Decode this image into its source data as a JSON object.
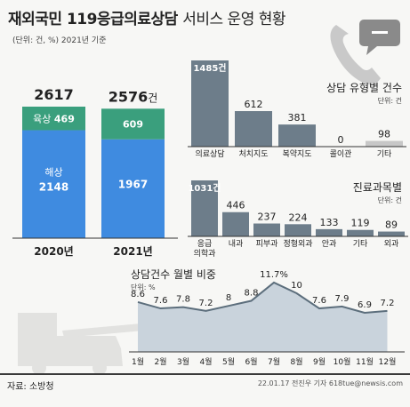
{
  "header": {
    "title_bold": "재외국민 119응급의료상담",
    "title_light": "서비스 운영 현황",
    "unit": "(단위: 건, %) 2021년 기준"
  },
  "colors": {
    "sea": "#3f8be0",
    "land": "#3a9f7d",
    "bar_gray": "#6d7d8a",
    "area_fill": "#c9d3dc",
    "area_line": "#5c6e7c",
    "accent_small": "#c7c7c7"
  },
  "icons": [
    "phone-icon",
    "fire-truck-icon"
  ],
  "chart_data": [
    {
      "type": "bar",
      "subtype": "stacked",
      "categories": [
        "2020년",
        "2021년"
      ],
      "totals": [
        2617,
        2576
      ],
      "total_suffixes": [
        "",
        "건"
      ],
      "series": [
        {
          "name": "육상",
          "values": [
            469,
            609
          ]
        },
        {
          "name": "해상",
          "values": [
            2148,
            1967
          ]
        }
      ]
    },
    {
      "type": "bar",
      "title": "상담 유형별 건수",
      "unit": "단위: 건",
      "categories": [
        "의료상담",
        "처치지도",
        "복약지도",
        "콜이관",
        "기타"
      ],
      "values": [
        1485,
        612,
        381,
        0,
        98
      ],
      "value_labels": [
        "1485건",
        "612",
        "381",
        "0",
        "98"
      ]
    },
    {
      "type": "bar",
      "title": "진료과목별",
      "unit": "단위: 건",
      "categories": [
        "응급의학과",
        "내과",
        "피부과",
        "정형외과",
        "안과",
        "기타",
        "외과"
      ],
      "category_lines": [
        [
          "응급",
          "의학과"
        ],
        [
          "내과"
        ],
        [
          "피부과"
        ],
        [
          "정형외과"
        ],
        [
          "안과"
        ],
        [
          "기타"
        ],
        [
          "외과"
        ]
      ],
      "values": [
        1031,
        446,
        237,
        224,
        133,
        119,
        89
      ],
      "value_labels": [
        "1031건",
        "446",
        "237",
        "224",
        "133",
        "119",
        "89"
      ]
    },
    {
      "type": "area",
      "title": "상담건수 월별 비중",
      "unit": "단위: %",
      "x": [
        "1월",
        "2월",
        "3월",
        "4월",
        "5월",
        "6월",
        "7월",
        "8월",
        "9월",
        "10월",
        "11월",
        "12월"
      ],
      "values": [
        8.6,
        7.6,
        7.8,
        7.2,
        8,
        8.8,
        11.7,
        10,
        7.6,
        7.9,
        6.9,
        7.2
      ],
      "value_labels": [
        "8.6",
        "7.6",
        "7.8",
        "7.2",
        "8",
        "8.8",
        "11.7%",
        "10",
        "7.6",
        "7.9",
        "6.9",
        "7.2"
      ]
    }
  ],
  "footer": {
    "source": "자료: 소방청",
    "credit": "22.01.17 전진우 기자 618tue@newsis.com"
  }
}
